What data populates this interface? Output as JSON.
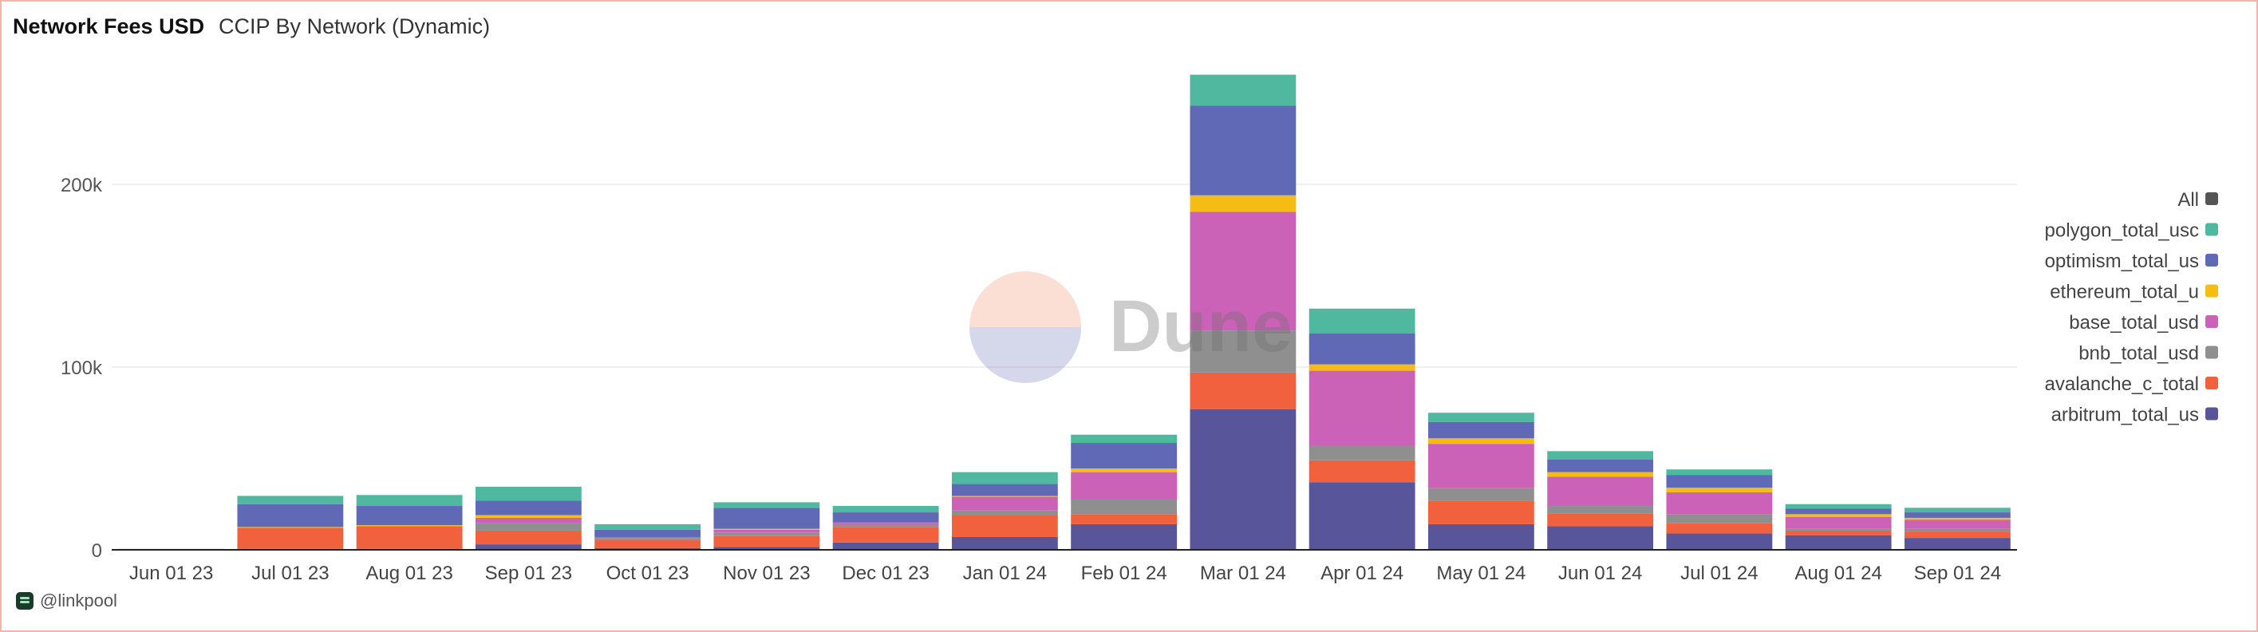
{
  "header": {
    "title": "Network Fees USD",
    "subtitle": "CCIP By Network (Dynamic)"
  },
  "footer": {
    "handle": "@linkpool"
  },
  "watermark": {
    "text": "Dune"
  },
  "chart_data": {
    "type": "bar",
    "stacked": true,
    "title": "Network Fees USD",
    "subtitle": "CCIP By Network (Dynamic)",
    "xlabel": "",
    "ylabel": "",
    "ylim": [
      0,
      270000
    ],
    "yticks": [
      0,
      100000,
      200000
    ],
    "ytick_labels": [
      "0",
      "100k",
      "200k"
    ],
    "grid": true,
    "legend_position": "right",
    "legend_all_label": "All",
    "categories": [
      "Jun 01 23",
      "Jul 01 23",
      "Aug 01 23",
      "Sep 01 23",
      "Oct 01 23",
      "Nov 01 23",
      "Dec 01 23",
      "Jan 01 24",
      "Feb 01 24",
      "Mar 01 24",
      "Apr 01 24",
      "May 01 24",
      "Jun 01 24",
      "Jul 01 24",
      "Aug 01 24",
      "Sep 01 24"
    ],
    "series": [
      {
        "name": "arbitrum_total_us",
        "color": "#59559a",
        "values": [
          0,
          500,
          500,
          3000,
          1000,
          1500,
          4000,
          7000,
          14000,
          77000,
          37000,
          14000,
          13000,
          9000,
          8000,
          6500
        ]
      },
      {
        "name": "avalanche_c_total",
        "color": "#f1613e",
        "values": [
          500,
          11500,
          12500,
          7500,
          4500,
          6000,
          8500,
          12000,
          5500,
          20000,
          12000,
          13000,
          7000,
          5500,
          2500,
          3500
        ]
      },
      {
        "name": "bnb_total_usd",
        "color": "#8f8f8f",
        "values": [
          0,
          0,
          0,
          4000,
          1000,
          2000,
          1500,
          2500,
          8000,
          23000,
          8000,
          7000,
          4000,
          5000,
          1000,
          1500
        ]
      },
      {
        "name": "base_total_usd",
        "color": "#cc62b8",
        "values": [
          0,
          0,
          0,
          3000,
          500,
          1500,
          1000,
          7500,
          15000,
          65000,
          41000,
          24000,
          16000,
          12000,
          6500,
          5000
        ]
      },
      {
        "name": "ethereum_total_u",
        "color": "#f5bc13",
        "values": [
          0,
          500,
          500,
          1500,
          0,
          500,
          0,
          500,
          2000,
          9000,
          3500,
          3000,
          2500,
          2500,
          1500,
          1000
        ]
      },
      {
        "name": "optimism_total_us",
        "color": "#6069b6",
        "values": [
          0,
          12500,
          10500,
          8000,
          4000,
          11500,
          5500,
          6500,
          14000,
          49000,
          17000,
          9000,
          7000,
          7000,
          3000,
          3000
        ]
      },
      {
        "name": "polygon_total_usc",
        "color": "#4fb89f",
        "values": [
          0,
          4500,
          6000,
          7500,
          3000,
          3000,
          3500,
          6500,
          4500,
          17000,
          13500,
          5000,
          4500,
          3000,
          2500,
          2500
        ]
      }
    ]
  }
}
